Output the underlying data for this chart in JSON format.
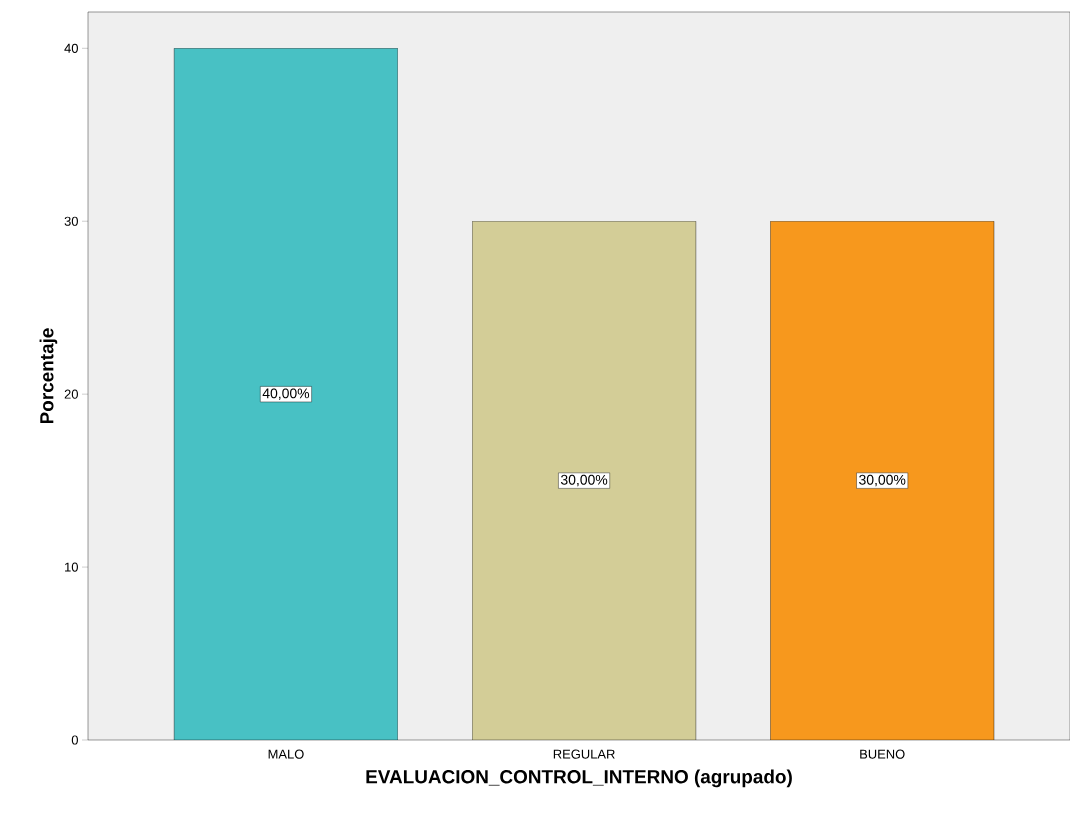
{
  "chart_data": {
    "type": "bar",
    "xlabel": "EVALUACION_CONTROL_INTERNO (agrupado)",
    "ylabel": "Porcentaje",
    "categories": [
      "MALO",
      "REGULAR",
      "BUENO"
    ],
    "values": [
      40,
      30,
      30
    ],
    "colors": [
      "#48c1c4",
      "#d3cd97",
      "#f7981d"
    ],
    "value_labels": [
      "40,00%",
      "30,00%",
      "30,00%"
    ],
    "ylim": [
      0,
      42.1
    ],
    "yticks": [
      0,
      10,
      20,
      30,
      40
    ]
  }
}
